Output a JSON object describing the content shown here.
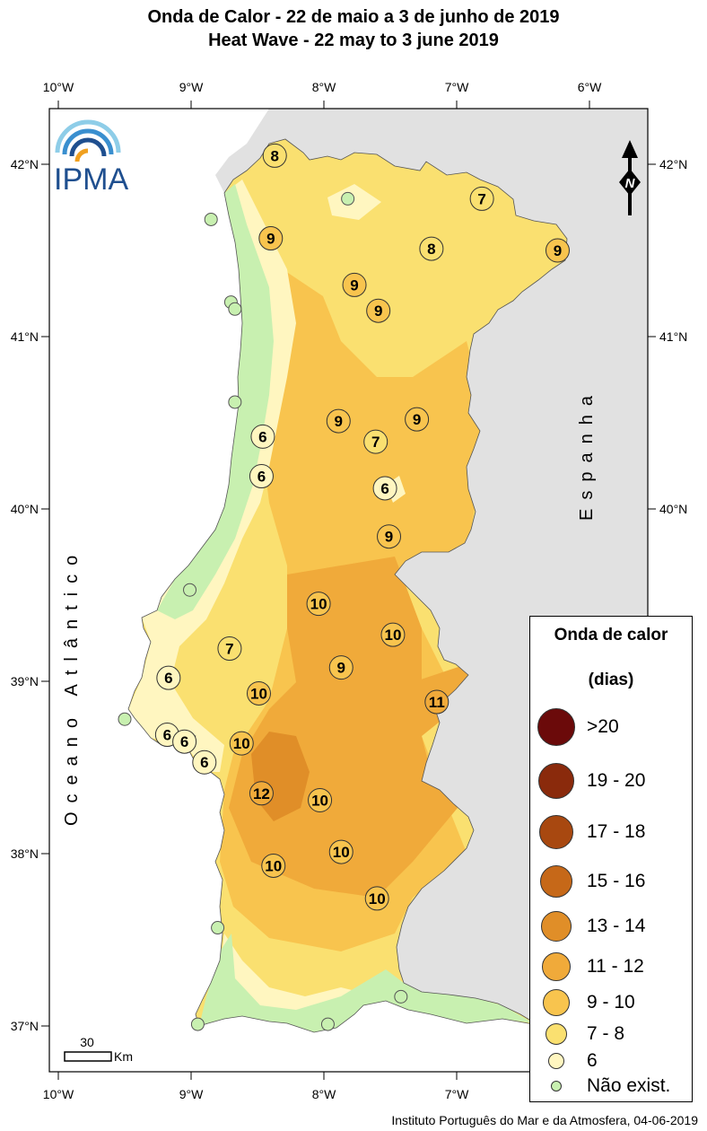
{
  "title": {
    "line1": "Onda de Calor  - 22 de maio a 3 de junho de 2019",
    "line2": "Heat Wave - 22 may to 3 june 2019"
  },
  "logo": {
    "text": "IPMA",
    "icon": "ipma-arc-logo"
  },
  "axes": {
    "lon_labels": [
      "10°W",
      "9°W",
      "8°W",
      "7°W",
      "6°W"
    ],
    "lat_labels": [
      "42°N",
      "41°N",
      "40°N",
      "39°N",
      "38°N",
      "37°N"
    ]
  },
  "labels": {
    "ocean": "Oceano Atlântico",
    "spain": "Espanha",
    "north": "N"
  },
  "scalebar": {
    "value": "30",
    "unit": "Km"
  },
  "stations": [
    {
      "lon": -8.37,
      "lat": 42.05,
      "value": "8",
      "cls": "7-8"
    },
    {
      "lon": -8.4,
      "lat": 41.57,
      "value": "9",
      "cls": "9-10"
    },
    {
      "lon": -7.77,
      "lat": 41.3,
      "value": "9",
      "cls": "9-10"
    },
    {
      "lon": -7.59,
      "lat": 41.15,
      "value": "9",
      "cls": "9-10"
    },
    {
      "lon": -7.19,
      "lat": 41.51,
      "value": "8",
      "cls": "7-8"
    },
    {
      "lon": -6.81,
      "lat": 41.8,
      "value": "7",
      "cls": "7-8"
    },
    {
      "lon": -6.24,
      "lat": 41.5,
      "value": "9",
      "cls": "9-10"
    },
    {
      "lon": -7.89,
      "lat": 40.51,
      "value": "9",
      "cls": "9-10"
    },
    {
      "lon": -7.3,
      "lat": 40.52,
      "value": "9",
      "cls": "9-10"
    },
    {
      "lon": -7.61,
      "lat": 40.39,
      "value": "7",
      "cls": "7-8"
    },
    {
      "lon": -8.46,
      "lat": 40.42,
      "value": "6",
      "cls": "6"
    },
    {
      "lon": -8.47,
      "lat": 40.19,
      "value": "6",
      "cls": "6"
    },
    {
      "lon": -7.54,
      "lat": 40.12,
      "value": "6",
      "cls": "6"
    },
    {
      "lon": -7.51,
      "lat": 39.84,
      "value": "9",
      "cls": "9-10"
    },
    {
      "lon": -8.04,
      "lat": 39.45,
      "value": "10",
      "cls": "9-10"
    },
    {
      "lon": -7.48,
      "lat": 39.27,
      "value": "10",
      "cls": "9-10"
    },
    {
      "lon": -8.71,
      "lat": 39.19,
      "value": "7",
      "cls": "7-8"
    },
    {
      "lon": -7.87,
      "lat": 39.08,
      "value": "9",
      "cls": "9-10"
    },
    {
      "lon": -9.17,
      "lat": 39.02,
      "value": "6",
      "cls": "6"
    },
    {
      "lon": -8.49,
      "lat": 38.93,
      "value": "10",
      "cls": "9-10"
    },
    {
      "lon": -7.15,
      "lat": 38.88,
      "value": "11",
      "cls": "11-12"
    },
    {
      "lon": -9.18,
      "lat": 38.69,
      "value": "6",
      "cls": "6"
    },
    {
      "lon": -9.05,
      "lat": 38.65,
      "value": "6",
      "cls": "6"
    },
    {
      "lon": -8.62,
      "lat": 38.64,
      "value": "10",
      "cls": "9-10"
    },
    {
      "lon": -8.9,
      "lat": 38.53,
      "value": "6",
      "cls": "6"
    },
    {
      "lon": -8.47,
      "lat": 38.35,
      "value": "12",
      "cls": "11-12"
    },
    {
      "lon": -8.03,
      "lat": 38.31,
      "value": "10",
      "cls": "9-10"
    },
    {
      "lon": -7.87,
      "lat": 38.01,
      "value": "10",
      "cls": "9-10"
    },
    {
      "lon": -8.38,
      "lat": 37.93,
      "value": "10",
      "cls": "9-10"
    },
    {
      "lon": -7.6,
      "lat": 37.74,
      "value": "10",
      "cls": "9-10"
    },
    {
      "lon": -7.82,
      "lat": 41.8,
      "value": "",
      "cls": "none"
    },
    {
      "lon": -8.85,
      "lat": 41.68,
      "value": "",
      "cls": "none"
    },
    {
      "lon": -8.7,
      "lat": 41.2,
      "value": "",
      "cls": "none"
    },
    {
      "lon": -8.67,
      "lat": 41.16,
      "value": "",
      "cls": "none"
    },
    {
      "lon": -8.67,
      "lat": 40.62,
      "value": "",
      "cls": "none"
    },
    {
      "lon": -9.01,
      "lat": 39.53,
      "value": "",
      "cls": "none"
    },
    {
      "lon": -9.5,
      "lat": 38.78,
      "value": "",
      "cls": "none"
    },
    {
      "lon": -8.8,
      "lat": 37.57,
      "value": "",
      "cls": "none"
    },
    {
      "lon": -8.95,
      "lat": 37.01,
      "value": "",
      "cls": "none"
    },
    {
      "lon": -7.97,
      "lat": 37.01,
      "value": "",
      "cls": "none"
    },
    {
      "lon": -7.42,
      "lat": 37.17,
      "value": "",
      "cls": "none"
    }
  ],
  "legend": {
    "title": "Onda de calor",
    "unit": "(dias)",
    "items": [
      {
        "label": ">20",
        "color": "#6b0a0a"
      },
      {
        "label": "19 - 20",
        "color": "#8a2a0c"
      },
      {
        "label": "17 - 18",
        "color": "#a84810"
      },
      {
        "label": "15 - 16",
        "color": "#c66818"
      },
      {
        "label": "13 - 14",
        "color": "#e08e28"
      },
      {
        "label": "11 - 12",
        "color": "#f0aa3a"
      },
      {
        "label": "9 - 10",
        "color": "#f8c44e"
      },
      {
        "label": "7 - 8",
        "color": "#fae070"
      },
      {
        "label": "6",
        "color": "#fff6c0"
      },
      {
        "label": "Não exist.",
        "color": "#c8f0b0"
      }
    ]
  },
  "colors": {
    "land_spain": "#e1e1e1",
    "sea": "#ffffff",
    "class_none": "#c8f0b0",
    "class_6": "#fff6c0",
    "class_7_8": "#fae070",
    "class_9_10": "#f8c44e",
    "class_11_12": "#f0aa3a",
    "class_13_14": "#e08e28"
  },
  "credit": "Instituto Português do Mar e da Atmosfera, 04-06-2019"
}
